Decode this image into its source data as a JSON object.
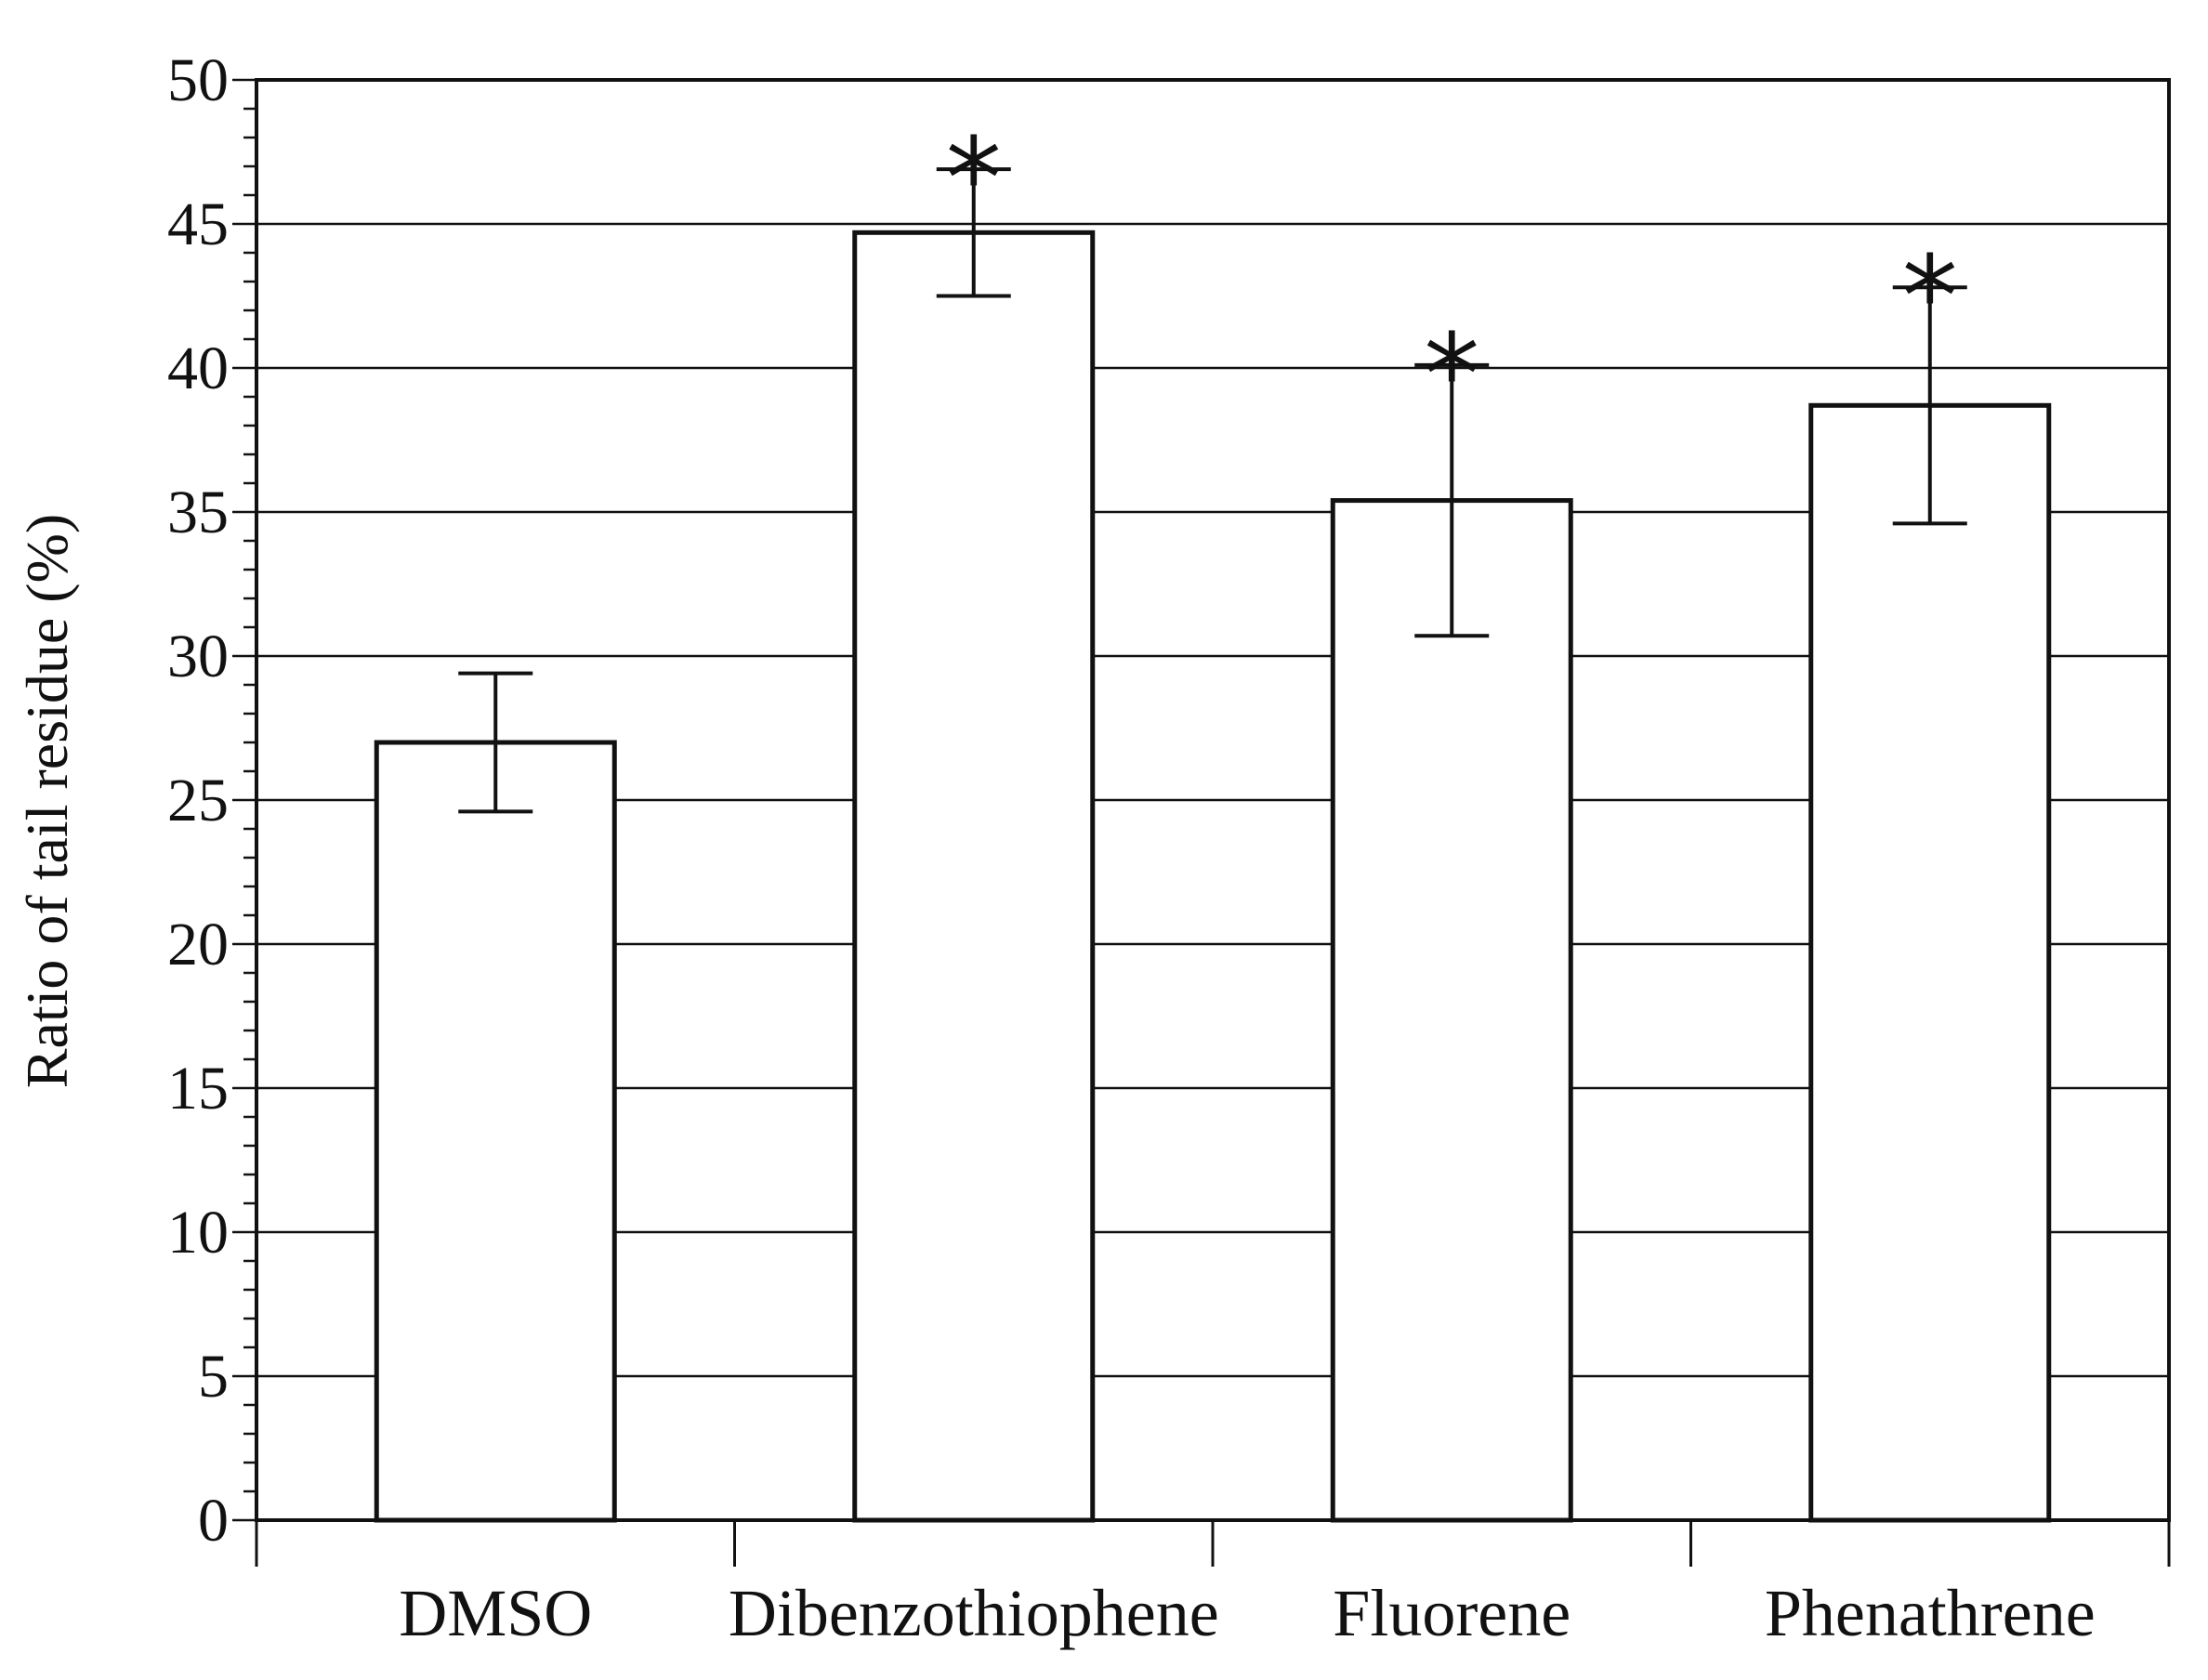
{
  "chart_data": {
    "type": "bar",
    "categories": [
      "DMSO",
      "Dibenzothiophene",
      "Fluorene",
      "Phenathrene"
    ],
    "values": [
      27.0,
      44.7,
      35.4,
      38.7
    ],
    "errors": [
      2.4,
      2.2,
      4.7,
      4.1
    ],
    "significance": [
      "",
      "*",
      "*",
      "*"
    ],
    "title": "",
    "xlabel": "",
    "ylabel": "Ratio of tail residue (%)",
    "ylim": [
      0,
      50
    ],
    "yticks": [
      0,
      5,
      10,
      15,
      20,
      25,
      30,
      35,
      40,
      45,
      50
    ],
    "grid": "horizontal at major ticks",
    "bar_fill": "#ffffff",
    "bar_stroke": "#111111"
  }
}
